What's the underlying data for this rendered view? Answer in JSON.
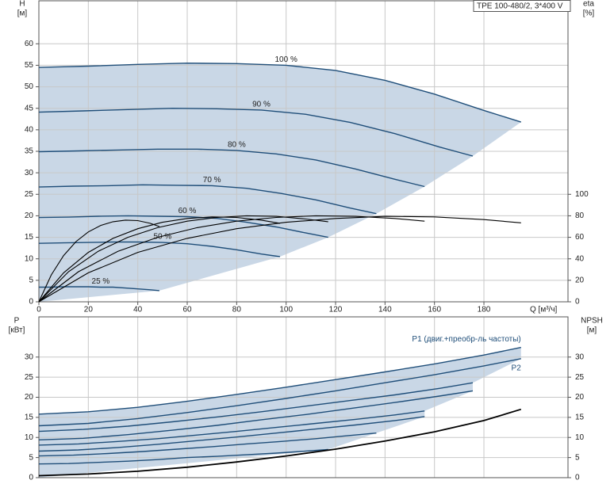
{
  "chart_data": [
    {
      "type": "line",
      "title": "TPE 100-480/2, 3*400 V",
      "y_label": "H",
      "y_unit": "[м]",
      "y2_label": "eta",
      "y2_unit": "[%]",
      "x_label": "Q [м³/ч]",
      "xlim": [
        0,
        214
      ],
      "xticks": [
        0,
        20,
        40,
        60,
        80,
        100,
        120,
        140,
        160,
        180
      ],
      "ylim": [
        0,
        70
      ],
      "yticks": [
        0,
        5,
        10,
        15,
        20,
        25,
        30,
        35,
        40,
        45,
        50,
        55,
        60
      ],
      "y2lim": [
        0,
        280
      ],
      "y2ticks": [
        0,
        20,
        40,
        60,
        80,
        100
      ],
      "grid": true,
      "shade_color": "#c9d7e6",
      "series": [
        {
          "name": "100 %",
          "color": "#1f4e79",
          "x": [
            0,
            20,
            40,
            60,
            80,
            100,
            120,
            140,
            160,
            180,
            195
          ],
          "values": [
            54.5,
            54.8,
            55.2,
            55.5,
            55.4,
            55,
            53.8,
            51.5,
            48.3,
            44.5,
            41.8
          ]
        },
        {
          "name": "90 %",
          "color": "#1f4e79",
          "x": [
            0,
            18,
            36,
            54,
            72,
            90,
            108,
            126,
            144,
            162,
            175.5
          ],
          "values": [
            44.1,
            44.4,
            44.7,
            45,
            44.9,
            44.6,
            43.6,
            41.7,
            39.1,
            36,
            33.9
          ]
        },
        {
          "name": "80 %",
          "color": "#1f4e79",
          "x": [
            0,
            16,
            32,
            48,
            64,
            80,
            96,
            112,
            128,
            144,
            156
          ],
          "values": [
            34.9,
            35.1,
            35.3,
            35.5,
            35.5,
            35.2,
            34.4,
            33,
            30.9,
            28.5,
            26.8
          ]
        },
        {
          "name": "70 %",
          "color": "#1f4e79",
          "x": [
            0,
            14,
            28,
            42,
            56,
            70,
            84,
            98,
            112,
            126,
            136.5
          ],
          "values": [
            26.7,
            26.9,
            27,
            27.2,
            27.1,
            27,
            26.4,
            25.2,
            23.7,
            21.8,
            20.5
          ]
        },
        {
          "name": "60 %",
          "color": "#1f4e79",
          "x": [
            0,
            12,
            24,
            36,
            48,
            60,
            72,
            84,
            96,
            108,
            117
          ],
          "values": [
            19.6,
            19.7,
            19.9,
            20,
            19.9,
            19.8,
            19.4,
            18.5,
            17.4,
            16,
            15
          ]
        },
        {
          "name": "50 %",
          "color": "#1f4e79",
          "x": [
            0,
            10,
            20,
            30,
            40,
            50,
            60,
            70,
            80,
            90,
            97.5
          ],
          "values": [
            13.6,
            13.7,
            13.8,
            13.9,
            13.9,
            13.8,
            13.5,
            12.9,
            12.1,
            11.1,
            10.5
          ]
        },
        {
          "name": "25 %",
          "color": "#1f4e79",
          "x": [
            0,
            5,
            10,
            15,
            20,
            25,
            30,
            35,
            40,
            45,
            48.75
          ],
          "values": [
            3.4,
            3.4,
            3.5,
            3.5,
            3.5,
            3.4,
            3.4,
            3.2,
            3,
            2.8,
            2.6
          ]
        },
        {
          "axis": "y2",
          "color": "#000000",
          "x": [
            0,
            20,
            40,
            60,
            80,
            100,
            120,
            140,
            160,
            180,
            195
          ],
          "values": [
            0,
            27,
            46,
            59,
            68,
            74,
            77.5,
            79.5,
            79,
            76.5,
            73.5
          ]
        },
        {
          "axis": "y2",
          "color": "#000000",
          "x": [
            0,
            16,
            32,
            48,
            64,
            80,
            96,
            112,
            128,
            144,
            156
          ],
          "values": [
            0,
            28,
            47,
            60,
            69,
            75,
            78.5,
            80,
            79.5,
            77.5,
            75
          ]
        },
        {
          "axis": "y2",
          "color": "#000000",
          "x": [
            0,
            12,
            24,
            36,
            48,
            60,
            72,
            84,
            96,
            108,
            117
          ],
          "values": [
            0,
            28,
            47,
            60,
            69,
            75,
            78.5,
            80,
            79.5,
            77,
            74.5
          ]
        },
        {
          "axis": "y2",
          "color": "#000000",
          "x": [
            0,
            10,
            20,
            30,
            40,
            50,
            60,
            70,
            80,
            90,
            97.5
          ],
          "values": [
            0,
            27,
            46,
            59,
            68,
            74,
            77.5,
            79,
            78.5,
            76,
            73
          ]
        },
        {
          "axis": "y2",
          "color": "#000000",
          "x": [
            0,
            5,
            10,
            15,
            20,
            25,
            30,
            35,
            40,
            45,
            48.75
          ],
          "values": [
            0,
            25,
            43,
            56,
            65,
            71,
            74.5,
            76,
            75.5,
            73,
            70
          ]
        }
      ]
    },
    {
      "type": "line",
      "y_label": "P",
      "y_unit": "[кВт]",
      "y2_label": "NPSH",
      "y2_unit": "[м]",
      "xlim": [
        0,
        214
      ],
      "ylim": [
        0,
        40
      ],
      "yticks": [
        0,
        5,
        10,
        15,
        20,
        25,
        30
      ],
      "y2lim": [
        0,
        40
      ],
      "y2ticks": [
        0,
        5,
        10,
        15,
        20,
        25,
        30
      ],
      "grid": true,
      "shade_color": "#c9d7e6",
      "series": [
        {
          "name": "P1 (двиг.+преобр-ль частоты)",
          "color": "#1f4e79",
          "x": [
            0,
            20,
            40,
            60,
            80,
            100,
            120,
            140,
            160,
            180,
            195
          ],
          "values": [
            15.8,
            16.4,
            17.5,
            19,
            20.7,
            22.5,
            24.4,
            26.3,
            28.3,
            30.5,
            32.4
          ]
        },
        {
          "name": "P2",
          "color": "#1f4e79",
          "x": [
            0,
            20,
            40,
            60,
            80,
            100,
            120,
            140,
            160,
            180,
            195
          ],
          "values": [
            12.9,
            13.5,
            14.7,
            16.2,
            17.9,
            19.7,
            21.6,
            23.6,
            25.6,
            27.8,
            29.6
          ]
        },
        {
          "color": "#1f4e79",
          "x": [
            0,
            18,
            36,
            54,
            72,
            90,
            108,
            126,
            144,
            162,
            175.5
          ],
          "values": [
            11.5,
            12,
            12.8,
            13.9,
            15.1,
            16.4,
            17.8,
            19.2,
            20.6,
            22.2,
            23.6
          ]
        },
        {
          "color": "#1f4e79",
          "x": [
            0,
            18,
            36,
            54,
            72,
            90,
            108,
            126,
            144,
            162,
            175.5
          ],
          "values": [
            9.4,
            9.8,
            10.7,
            11.8,
            13,
            14.4,
            15.7,
            17.2,
            18.7,
            20.3,
            21.6
          ]
        },
        {
          "color": "#1f4e79",
          "x": [
            0,
            16,
            32,
            48,
            64,
            80,
            96,
            112,
            128,
            144,
            156
          ],
          "values": [
            8.1,
            8.4,
            9,
            9.7,
            10.6,
            11.5,
            12.5,
            13.5,
            14.5,
            15.6,
            16.6
          ]
        },
        {
          "color": "#1f4e79",
          "x": [
            0,
            16,
            32,
            48,
            64,
            80,
            96,
            112,
            128,
            144,
            156
          ],
          "values": [
            6.6,
            6.9,
            7.5,
            8.3,
            9.2,
            10.1,
            11.1,
            12.1,
            13.1,
            14.2,
            15.2
          ]
        },
        {
          "color": "#1f4e79",
          "x": [
            0,
            14,
            28,
            42,
            56,
            70,
            84,
            98,
            112,
            126,
            136.5
          ],
          "values": [
            5.4,
            5.6,
            6,
            6.5,
            7.1,
            7.7,
            8.4,
            9,
            9.7,
            10.5,
            11.1
          ]
        },
        {
          "color": "#1f4e79",
          "x": [
            0,
            12,
            24,
            36,
            48,
            60,
            72,
            84,
            96,
            108,
            117
          ],
          "values": [
            3.4,
            3.5,
            3.8,
            4.1,
            4.5,
            5,
            5.3,
            5.7,
            6.1,
            6.6,
            7
          ]
        },
        {
          "axis": "y2",
          "color": "#000000",
          "x": [
            0,
            20,
            40,
            60,
            80,
            100,
            120,
            140,
            160,
            180,
            195
          ],
          "values": [
            0.5,
            0.9,
            1.6,
            2.6,
            3.9,
            5.4,
            7.1,
            9.1,
            11.4,
            14.2,
            17
          ]
        }
      ]
    }
  ]
}
